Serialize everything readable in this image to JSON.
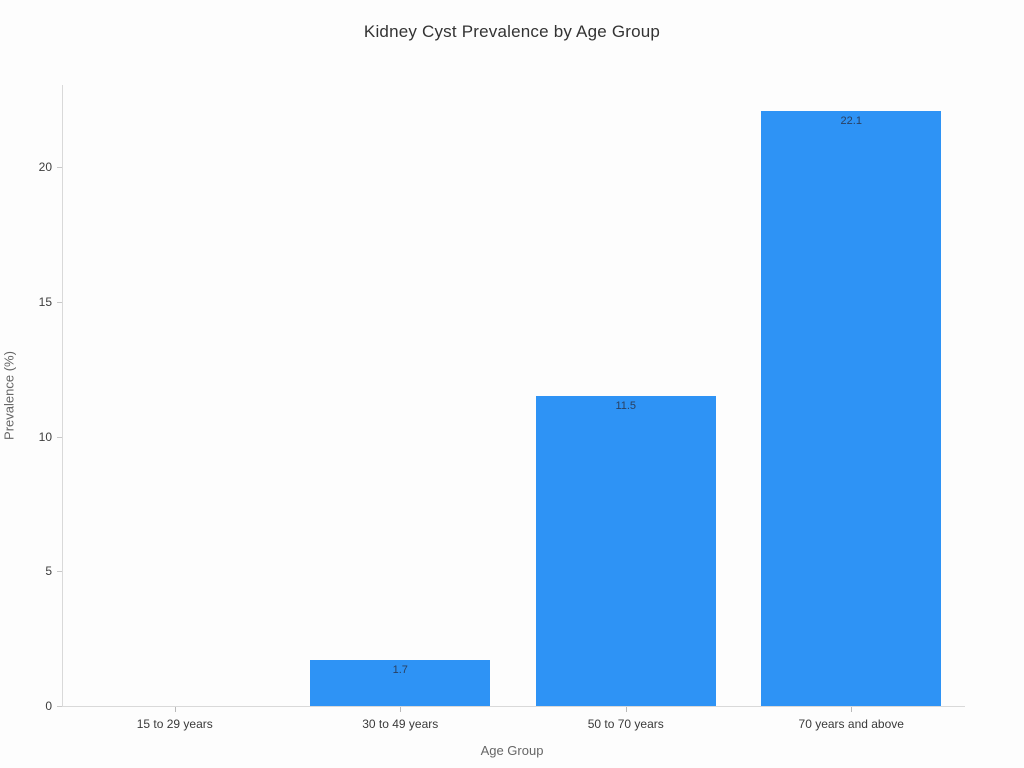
{
  "page": {
    "background_color": "#fdfdfd"
  },
  "chart_data": {
    "type": "bar",
    "title": "Kidney Cyst Prevalence by Age Group",
    "xlabel": "Age Group",
    "ylabel": "Prevalence (%)",
    "categories": [
      "15 to 29 years",
      "30 to 49 years",
      "50 to 70 years",
      "70 years and above"
    ],
    "values": [
      0,
      1.7,
      11.5,
      22.1
    ],
    "bar_labels": [
      "",
      "1.7",
      "11.5",
      "22.1"
    ],
    "ylim": [
      0,
      23.05
    ],
    "yticks": [
      0,
      5,
      10,
      15,
      20
    ],
    "grid": false,
    "legend": "none",
    "colors": {
      "bar": "#2e93f5",
      "bar_label_text": "#2a3f5f",
      "axis_line": "#d9d9d9",
      "title_text": "#333333",
      "tick_text": "#3a3a3a",
      "axis_title_text": "#666666"
    }
  }
}
